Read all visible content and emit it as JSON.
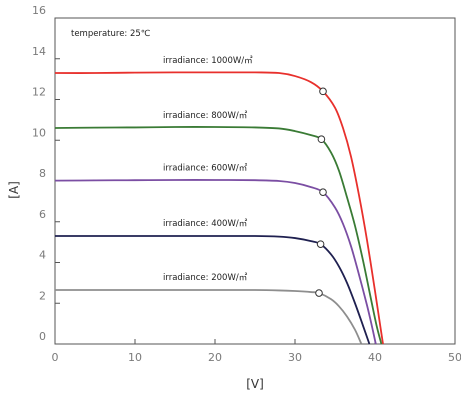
{
  "chart_data": {
    "type": "line",
    "xlabel": "[V]",
    "ylabel": "[A]",
    "xlim": [
      0,
      50
    ],
    "ylim": [
      0,
      16
    ],
    "xticks": [
      "0",
      "10",
      "20",
      "30",
      "40",
      "50"
    ],
    "yticks": [
      "0",
      "2",
      "4",
      "6",
      "8",
      "10",
      "12",
      "14",
      "16"
    ],
    "grid": false,
    "annotation": "temperature: 25℃",
    "series": [
      {
        "name": "irradiance: 1000W/㎡",
        "color": "#e8302c",
        "points": [
          [
            0,
            13.3
          ],
          [
            5,
            13.3
          ],
          [
            10,
            13.32
          ],
          [
            15,
            13.33
          ],
          [
            20,
            13.33
          ],
          [
            25,
            13.33
          ],
          [
            28,
            13.3
          ],
          [
            30,
            13.15
          ],
          [
            32,
            12.85
          ],
          [
            33.5,
            12.4
          ],
          [
            35,
            11.6
          ],
          [
            36,
            10.6
          ],
          [
            37,
            9.2
          ],
          [
            38,
            7.3
          ],
          [
            39,
            5.1
          ],
          [
            40,
            2.6
          ],
          [
            40.5,
            1.3
          ],
          [
            41,
            0
          ]
        ],
        "mpp": [
          33.5,
          12.4
        ]
      },
      {
        "name": "irradiance: 800W/㎡",
        "color": "#3a7b35",
        "points": [
          [
            0,
            10.6
          ],
          [
            5,
            10.62
          ],
          [
            10,
            10.63
          ],
          [
            15,
            10.65
          ],
          [
            20,
            10.65
          ],
          [
            25,
            10.63
          ],
          [
            28,
            10.58
          ],
          [
            30,
            10.45
          ],
          [
            32,
            10.25
          ],
          [
            33.3,
            10.05
          ],
          [
            34.5,
            9.4
          ],
          [
            35.5,
            8.5
          ],
          [
            36.5,
            7.2
          ],
          [
            37.5,
            5.8
          ],
          [
            38.5,
            4.1
          ],
          [
            39.5,
            2.2
          ],
          [
            40.2,
            0.9
          ],
          [
            40.8,
            0
          ]
        ],
        "mpp": [
          33.3,
          10.05
        ]
      },
      {
        "name": "irradiance: 600W/㎡",
        "color": "#7b4ea3",
        "points": [
          [
            0,
            8.02
          ],
          [
            5,
            8.03
          ],
          [
            10,
            8.04
          ],
          [
            15,
            8.05
          ],
          [
            20,
            8.05
          ],
          [
            25,
            8.04
          ],
          [
            28,
            8.0
          ],
          [
            30,
            7.9
          ],
          [
            32,
            7.7
          ],
          [
            33.5,
            7.45
          ],
          [
            35,
            6.7
          ],
          [
            36,
            5.9
          ],
          [
            37,
            4.8
          ],
          [
            38,
            3.4
          ],
          [
            39,
            1.9
          ],
          [
            39.6,
            0.9
          ],
          [
            40.1,
            0
          ]
        ],
        "mpp": [
          33.5,
          7.45
        ]
      },
      {
        "name": "irradiance: 400W/㎡",
        "color": "#1f2050",
        "points": [
          [
            0,
            5.3
          ],
          [
            5,
            5.3
          ],
          [
            10,
            5.3
          ],
          [
            15,
            5.3
          ],
          [
            20,
            5.3
          ],
          [
            25,
            5.3
          ],
          [
            28,
            5.27
          ],
          [
            30,
            5.2
          ],
          [
            32,
            5.05
          ],
          [
            33.2,
            4.9
          ],
          [
            34.5,
            4.4
          ],
          [
            35.5,
            3.8
          ],
          [
            36.5,
            3.0
          ],
          [
            37.5,
            2.0
          ],
          [
            38.5,
            0.9
          ],
          [
            39.3,
            0
          ]
        ],
        "mpp": [
          33.2,
          4.9
        ]
      },
      {
        "name": "irradiance: 200W/㎡",
        "color": "#8e8e8e",
        "points": [
          [
            0,
            2.65
          ],
          [
            5,
            2.65
          ],
          [
            10,
            2.65
          ],
          [
            15,
            2.65
          ],
          [
            20,
            2.65
          ],
          [
            25,
            2.65
          ],
          [
            28,
            2.63
          ],
          [
            30,
            2.6
          ],
          [
            32,
            2.55
          ],
          [
            33.0,
            2.5
          ],
          [
            34.5,
            2.2
          ],
          [
            35.5,
            1.85
          ],
          [
            36.5,
            1.35
          ],
          [
            37.5,
            0.7
          ],
          [
            38.3,
            0
          ]
        ],
        "mpp": [
          33.0,
          2.5
        ]
      }
    ]
  }
}
